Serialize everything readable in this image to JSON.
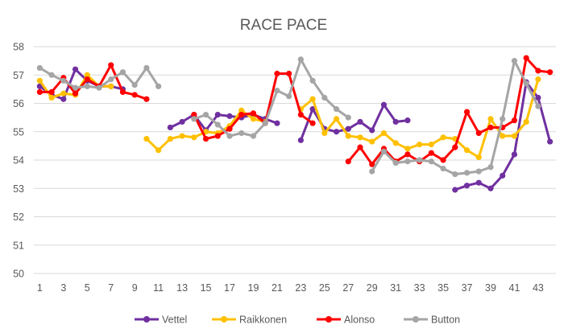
{
  "chart_data": {
    "type": "line",
    "title": "RACE PACE",
    "xlabel": "",
    "ylabel": "",
    "xlim": [
      1,
      44
    ],
    "ylim": [
      50,
      58
    ],
    "x_ticks": [
      1,
      3,
      5,
      7,
      9,
      11,
      13,
      15,
      17,
      19,
      21,
      23,
      25,
      27,
      29,
      31,
      33,
      35,
      37,
      39,
      41,
      43
    ],
    "y_ticks": [
      50,
      51,
      52,
      53,
      54,
      55,
      56,
      57,
      58
    ],
    "grid": "horizontal",
    "legend_position": "bottom",
    "series": [
      {
        "name": "Vettel",
        "color": "#7030a0",
        "values": [
          56.6,
          56.3,
          56.15,
          57.2,
          56.8,
          56.6,
          56.6,
          56.5,
          null,
          null,
          null,
          55.15,
          55.35,
          55.6,
          55.05,
          55.6,
          55.55,
          55.5,
          55.6,
          55.45,
          55.3,
          null,
          54.7,
          55.8,
          55.1,
          55.0,
          55.1,
          55.35,
          55.05,
          55.95,
          55.35,
          55.4,
          null,
          null,
          null,
          52.95,
          53.1,
          53.2,
          53.0,
          53.45,
          54.2,
          56.75,
          56.2,
          54.65
        ]
      },
      {
        "name": "Raikkonen",
        "color": "#ffc000",
        "values": [
          56.8,
          56.2,
          56.35,
          56.3,
          57.0,
          56.6,
          56.6,
          null,
          null,
          54.75,
          54.35,
          54.75,
          54.85,
          54.8,
          55.0,
          54.95,
          55.2,
          55.75,
          55.45,
          55.35,
          null,
          null,
          55.8,
          56.15,
          54.95,
          55.45,
          54.85,
          54.8,
          54.65,
          54.95,
          54.6,
          54.4,
          54.55,
          54.55,
          54.8,
          54.75,
          54.35,
          54.1,
          55.45,
          54.85,
          54.85,
          55.35,
          56.85,
          null
        ]
      },
      {
        "name": "Alonso",
        "color": "#ff0000",
        "values": [
          56.4,
          56.4,
          56.9,
          56.35,
          56.85,
          56.6,
          57.35,
          56.4,
          56.3,
          56.15,
          null,
          null,
          null,
          55.6,
          54.75,
          54.85,
          55.1,
          55.6,
          55.65,
          55.3,
          57.05,
          57.05,
          55.6,
          55.3,
          null,
          null,
          53.95,
          54.45,
          53.85,
          54.4,
          53.95,
          54.2,
          53.95,
          54.25,
          54.0,
          54.45,
          55.7,
          54.95,
          55.15,
          55.15,
          55.4,
          57.6,
          57.15,
          57.1
        ]
      },
      {
        "name": "Button",
        "color": "#a5a5a5",
        "values": [
          57.25,
          57.0,
          56.8,
          56.55,
          56.6,
          56.55,
          56.85,
          57.1,
          56.65,
          57.25,
          56.6,
          null,
          null,
          55.45,
          55.6,
          55.25,
          54.85,
          54.95,
          54.85,
          55.3,
          56.45,
          56.25,
          57.55,
          56.8,
          56.2,
          55.8,
          55.5,
          null,
          53.6,
          54.3,
          53.9,
          53.95,
          54.0,
          53.95,
          53.7,
          53.5,
          53.55,
          53.6,
          53.75,
          55.45,
          57.5,
          56.7,
          55.9,
          null
        ]
      }
    ]
  }
}
